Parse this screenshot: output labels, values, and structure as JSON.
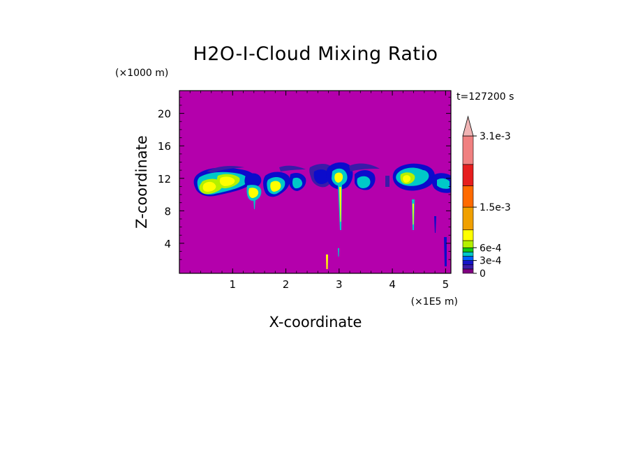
{
  "chart_data": {
    "type": "heatmap",
    "title": "H2O-I-Cloud Mixing Ratio",
    "xlabel": "X-coordinate",
    "ylabel": "Z-coordinate",
    "x_unit": "(×1E5 m)",
    "y_unit": "(×1000 m)",
    "time_label": "t=127200 s",
    "x_ticks": [
      1,
      2,
      3,
      4,
      5
    ],
    "y_ticks": [
      4,
      8,
      12,
      16,
      20
    ],
    "xlim": [
      0,
      5.1
    ],
    "ylim": [
      0.3,
      22.8
    ],
    "background_color": "#b400ac",
    "colorbar": {
      "labels": [
        "3.1e-3",
        "1.5e-3",
        "6e-4",
        "3e-4",
        "0"
      ],
      "label_values": [
        0.0031,
        0.0015,
        0.0006,
        0.0003,
        0
      ],
      "colors": [
        "#800080",
        "#3a1ba8",
        "#1414c8",
        "#0060ff",
        "#00c8c8",
        "#14c814",
        "#b4f000",
        "#ffff00",
        "#f0a000",
        "#ff6a00",
        "#e61e1e",
        "#f08080",
        "#f0b4b4"
      ],
      "bounds": [
        0,
        0.0001,
        0.0002,
        0.0003,
        0.0004,
        0.0005,
        0.0006,
        0.0007,
        0.0009,
        0.0015,
        0.0021,
        0.0027,
        0.0031
      ]
    }
  }
}
